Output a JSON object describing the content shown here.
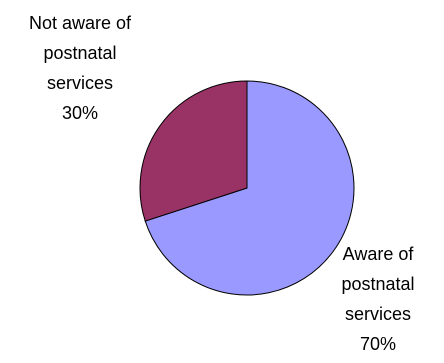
{
  "chart_data": {
    "type": "pie",
    "title": "",
    "slices": [
      {
        "label_lines": [
          "Aware of",
          "postnatal",
          "services"
        ],
        "percent_text": "70%",
        "value": 70,
        "color": "#9999ff"
      },
      {
        "label_lines": [
          "Not aware of",
          "postnatal",
          "services"
        ],
        "percent_text": "30%",
        "value": 30,
        "color": "#993366"
      }
    ],
    "start_angle_deg": 0,
    "direction": "clockwise",
    "legend": "none",
    "data_labels": "outside"
  }
}
